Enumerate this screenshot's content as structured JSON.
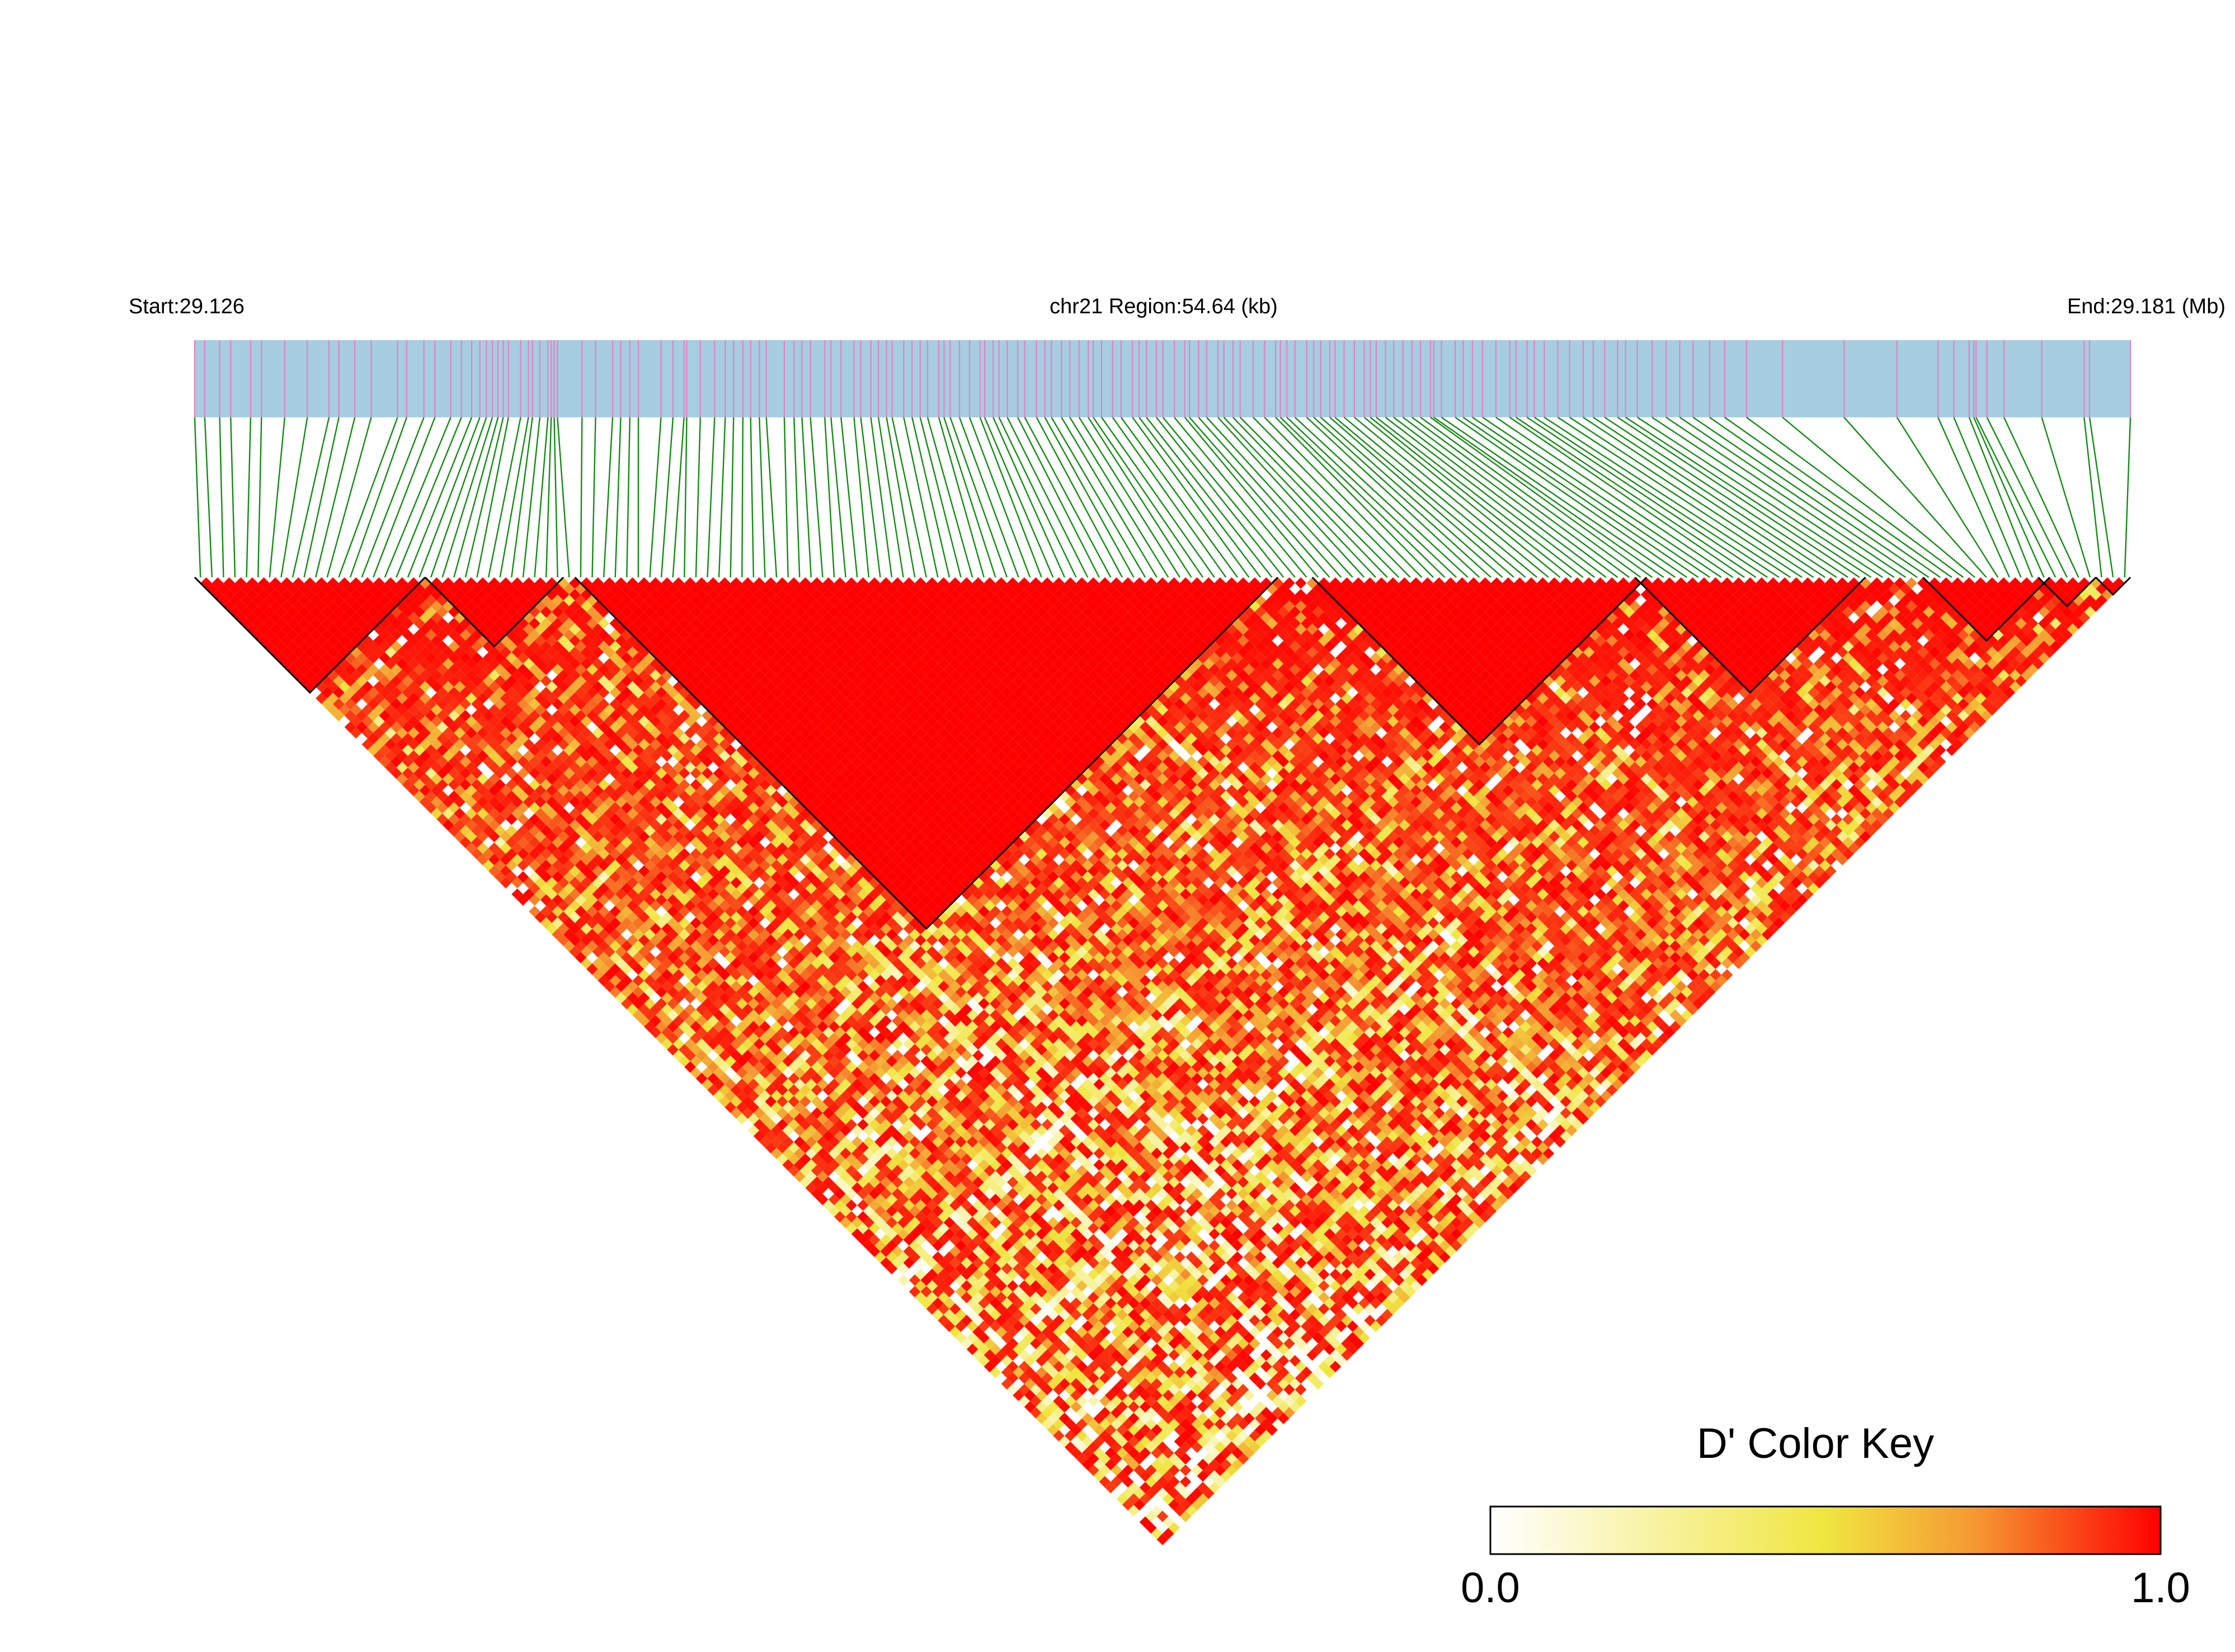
{
  "chart_data": {
    "type": "heatmap",
    "title": "",
    "start_label": "Start:29.126",
    "region_label": "chr21 Region:54.64 (kb)",
    "end_label": "End:29.181 (Mb)",
    "chromosome": "chr21",
    "region_start_mb": 29.126,
    "region_end_mb": 29.181,
    "region_length_kb": 54.64,
    "marker_count": 168,
    "snp_positions_relative": [
      0.0,
      0.0052,
      0.0129,
      0.0186,
      0.0289,
      0.0345,
      0.0465,
      0.0582,
      0.0694,
      0.0745,
      0.0827,
      0.0912,
      0.1048,
      0.1095,
      0.1184,
      0.1241,
      0.1323,
      0.1378,
      0.1431,
      0.1473,
      0.1507,
      0.1538,
      0.1567,
      0.1594,
      0.1621,
      0.1684,
      0.1724,
      0.1745,
      0.1783,
      0.1825,
      0.1842,
      0.1857,
      0.1874,
      0.2001,
      0.2071,
      0.2159,
      0.2201,
      0.2248,
      0.2292,
      0.2409,
      0.2471,
      0.2528,
      0.2542,
      0.2612,
      0.2686,
      0.2741,
      0.2784,
      0.2832,
      0.2872,
      0.2917,
      0.2953,
      0.3046,
      0.3096,
      0.3137,
      0.3181,
      0.3255,
      0.3287,
      0.3339,
      0.3406,
      0.3441,
      0.3493,
      0.3532,
      0.3574,
      0.3603,
      0.3663,
      0.3706,
      0.3748,
      0.3786,
      0.3844,
      0.3871,
      0.3903,
      0.3951,
      0.4003,
      0.4057,
      0.4081,
      0.4125,
      0.4155,
      0.4198,
      0.4252,
      0.4288,
      0.4349,
      0.4392,
      0.4426,
      0.4478,
      0.4521,
      0.4569,
      0.4616,
      0.4642,
      0.4685,
      0.4742,
      0.4786,
      0.4845,
      0.4879,
      0.4917,
      0.4968,
      0.5002,
      0.5061,
      0.5115,
      0.5139,
      0.5186,
      0.5228,
      0.5286,
      0.5317,
      0.5364,
      0.5401,
      0.5468,
      0.5527,
      0.5584,
      0.5609,
      0.5642,
      0.5684,
      0.5745,
      0.5781,
      0.5817,
      0.5864,
      0.5891,
      0.5938,
      0.5991,
      0.6042,
      0.6073,
      0.6104,
      0.6152,
      0.6194,
      0.6242,
      0.6289,
      0.6333,
      0.6384,
      0.6401,
      0.6441,
      0.6512,
      0.6553,
      0.6601,
      0.6653,
      0.6722,
      0.6794,
      0.6826,
      0.6883,
      0.6921,
      0.6972,
      0.7042,
      0.7103,
      0.7173,
      0.7225,
      0.7284,
      0.7351,
      0.7392,
      0.7453,
      0.7529,
      0.7601,
      0.7672,
      0.7741,
      0.7826,
      0.7904,
      0.8017,
      0.8203,
      0.8521,
      0.8794,
      0.9006,
      0.9088,
      0.9167,
      0.9191,
      0.9203,
      0.9259,
      0.9347,
      0.9542,
      0.9761,
      0.9789,
      1.0
    ],
    "ld_blocks": [
      {
        "first_marker": 0,
        "last_marker": 19
      },
      {
        "first_marker": 20,
        "last_marker": 31
      },
      {
        "first_marker": 33,
        "last_marker": 93
      },
      {
        "first_marker": 97,
        "last_marker": 125
      },
      {
        "first_marker": 125,
        "last_marker": 144
      },
      {
        "first_marker": 150,
        "last_marker": 160
      },
      {
        "first_marker": 160,
        "last_marker": 164
      },
      {
        "first_marker": 165,
        "last_marker": 167
      }
    ],
    "color_key": {
      "title": "D' Color Key",
      "min_label": "0.0",
      "max_label": "1.0",
      "min": 0.0,
      "max": 1.0,
      "stops": [
        {
          "value": 0.0,
          "color": "#ffffff"
        },
        {
          "value": 0.5,
          "color": "#f0e640"
        },
        {
          "value": 0.72,
          "color": "#f59a32"
        },
        {
          "value": 1.0,
          "color": "#ff0000"
        }
      ]
    },
    "palette": {
      "track_background": "#a7cde1",
      "snp_tick": "#e382c3",
      "connector": "#118c11",
      "block_outline": "#000000"
    }
  }
}
